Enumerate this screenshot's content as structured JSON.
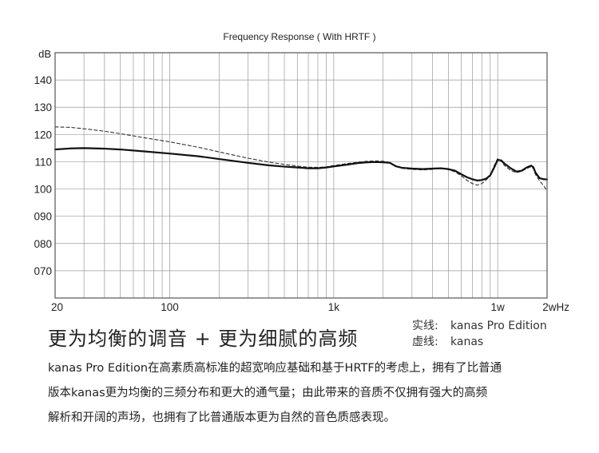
{
  "chart_data": {
    "type": "line",
    "title": "Frequency Response ( With HRTF )",
    "ylabel": "dB",
    "xlabel": "",
    "x_scale": "log",
    "x_unit": "Hz",
    "xlim": [
      20,
      20000
    ],
    "ylim": [
      60,
      150
    ],
    "x_ticks": [
      {
        "value": 20,
        "label": "20"
      },
      {
        "value": 100,
        "label": "100"
      },
      {
        "value": 1000,
        "label": "1k"
      },
      {
        "value": 10000,
        "label": "1w"
      },
      {
        "value": 20000,
        "label": "2wHz"
      }
    ],
    "y_ticks": [
      {
        "value": 140,
        "label": "140"
      },
      {
        "value": 130,
        "label": "130"
      },
      {
        "value": 120,
        "label": "120"
      },
      {
        "value": 110,
        "label": "110"
      },
      {
        "value": 100,
        "label": "100"
      },
      {
        "value": 90,
        "label": "090"
      },
      {
        "value": 80,
        "label": "080"
      },
      {
        "value": 70,
        "label": "070"
      }
    ],
    "grid": true,
    "series": [
      {
        "name": "kanas Pro Edition",
        "style": "solid",
        "color": "#111111",
        "points": [
          [
            20,
            114.5
          ],
          [
            25,
            114.9
          ],
          [
            30,
            115.0
          ],
          [
            40,
            114.8
          ],
          [
            50,
            114.5
          ],
          [
            70,
            113.8
          ],
          [
            100,
            113.0
          ],
          [
            150,
            112.0
          ],
          [
            200,
            111.0
          ],
          [
            300,
            109.6
          ],
          [
            400,
            108.7
          ],
          [
            500,
            108.2
          ],
          [
            600,
            107.9
          ],
          [
            700,
            107.6
          ],
          [
            800,
            107.6
          ],
          [
            900,
            107.9
          ],
          [
            1000,
            108.3
          ],
          [
            1200,
            108.9
          ],
          [
            1400,
            109.5
          ],
          [
            1600,
            109.8
          ],
          [
            1800,
            109.9
          ],
          [
            2000,
            109.8
          ],
          [
            2200,
            109.6
          ],
          [
            2400,
            108.3
          ],
          [
            2600,
            107.8
          ],
          [
            3000,
            107.5
          ],
          [
            3500,
            107.3
          ],
          [
            4000,
            107.5
          ],
          [
            4500,
            107.6
          ],
          [
            5000,
            107.3
          ],
          [
            5500,
            106.7
          ],
          [
            6000,
            105.4
          ],
          [
            6500,
            104.3
          ],
          [
            7000,
            103.6
          ],
          [
            7500,
            103.1
          ],
          [
            8000,
            103.3
          ],
          [
            8500,
            103.8
          ],
          [
            9000,
            105.0
          ],
          [
            9500,
            107.8
          ],
          [
            10000,
            110.7
          ],
          [
            10500,
            110.5
          ],
          [
            11000,
            109.3
          ],
          [
            12000,
            107.6
          ],
          [
            13000,
            106.4
          ],
          [
            14000,
            106.7
          ],
          [
            15000,
            107.9
          ],
          [
            16000,
            108.6
          ],
          [
            16500,
            108.0
          ],
          [
            17000,
            106.0
          ],
          [
            18000,
            104.0
          ],
          [
            19000,
            103.6
          ],
          [
            20000,
            103.5
          ]
        ]
      },
      {
        "name": "kanas",
        "style": "dashed",
        "color": "#333333",
        "points": [
          [
            20,
            122.8
          ],
          [
            25,
            122.6
          ],
          [
            30,
            122.1
          ],
          [
            40,
            121.2
          ],
          [
            50,
            120.3
          ],
          [
            70,
            118.8
          ],
          [
            100,
            117.3
          ],
          [
            150,
            115.3
          ],
          [
            200,
            113.6
          ],
          [
            300,
            111.3
          ],
          [
            400,
            109.9
          ],
          [
            500,
            109.0
          ],
          [
            600,
            108.4
          ],
          [
            700,
            108.0
          ],
          [
            800,
            107.9
          ],
          [
            900,
            108.1
          ],
          [
            1000,
            108.6
          ],
          [
            1200,
            109.3
          ],
          [
            1400,
            109.8
          ],
          [
            1600,
            110.2
          ],
          [
            1800,
            110.3
          ],
          [
            2000,
            110.2
          ],
          [
            2200,
            109.7
          ],
          [
            2400,
            108.3
          ],
          [
            2600,
            107.6
          ],
          [
            3000,
            107.2
          ],
          [
            3500,
            107.0
          ],
          [
            4000,
            107.2
          ],
          [
            4500,
            107.6
          ],
          [
            5000,
            107.1
          ],
          [
            5500,
            106.3
          ],
          [
            6000,
            104.8
          ],
          [
            6500,
            103.2
          ],
          [
            7000,
            102.0
          ],
          [
            7500,
            101.4
          ],
          [
            8000,
            102.0
          ],
          [
            8500,
            103.3
          ],
          [
            9000,
            105.0
          ],
          [
            9500,
            108.5
          ],
          [
            10000,
            111.2
          ],
          [
            10500,
            110.2
          ],
          [
            11000,
            108.6
          ],
          [
            12000,
            106.8
          ],
          [
            13000,
            106.0
          ],
          [
            14000,
            106.5
          ],
          [
            15000,
            107.5
          ],
          [
            16000,
            108.2
          ],
          [
            16500,
            107.5
          ],
          [
            17000,
            105.3
          ],
          [
            18000,
            103.0
          ],
          [
            19000,
            101.3
          ],
          [
            20000,
            99.3
          ]
        ]
      }
    ]
  },
  "text": {
    "headline": "更为均衡的调音 + 更为细腻的高频",
    "legend": {
      "solid_key": "实线:",
      "solid_value": "kanas Pro Edition",
      "dashed_key": "虚线:",
      "dashed_value": "kanas"
    },
    "paragraph": [
      "kanas Pro Edition在高素质高标准的超宽响应基础和基于HRTF的考虑上，拥有了比普通",
      "版本kanas更为均衡的三频分布和更大的通气量；由此带来的音质不仅拥有强大的高频",
      "解析和开阔的声场，也拥有了比普通版本更为自然的音色质感表现。"
    ]
  }
}
